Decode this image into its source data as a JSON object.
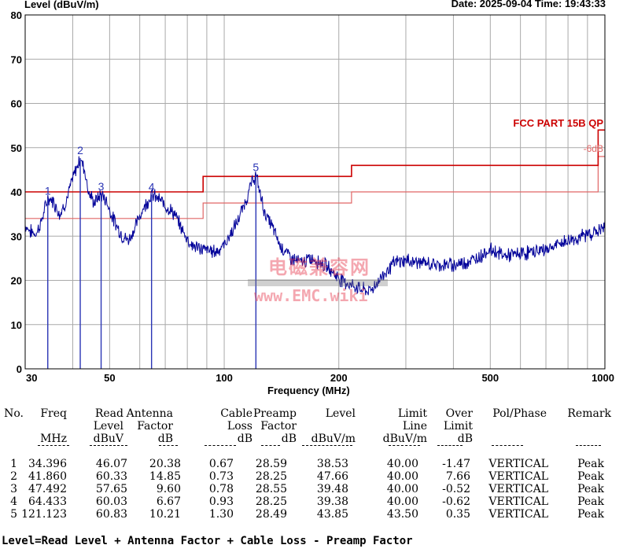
{
  "header": {
    "ylabel": "Level (dBuV/m)",
    "datetime": "Date: 2025-09-04  Time: 19:43:33",
    "xlabel": "Frequency (MHz)"
  },
  "watermark": {
    "line1": "电磁兼容网",
    "line2": "www.EMC.wiki"
  },
  "chart_data": {
    "type": "line",
    "xscale": "log",
    "xlim": [
      30,
      1000
    ],
    "ylim": [
      0,
      80
    ],
    "grid": true,
    "y_ticks": [
      0,
      10,
      20,
      30,
      40,
      50,
      60,
      70,
      80
    ],
    "x_tick_labels": [
      {
        "value": 30,
        "label": "30"
      },
      {
        "value": 50,
        "label": "50"
      },
      {
        "value": 100,
        "label": "100"
      },
      {
        "value": 200,
        "label": "200"
      },
      {
        "value": 500,
        "label": "500"
      },
      {
        "value": 1000,
        "label": "1000"
      }
    ],
    "x_minor_grid": [
      30,
      40,
      50,
      60,
      70,
      80,
      90,
      100,
      200,
      300,
      400,
      500,
      600,
      700,
      800,
      900,
      1000
    ],
    "limit_name": "FCC PART 15B QP",
    "margin_label": "-6dB",
    "limit_line": [
      [
        30,
        40.0
      ],
      [
        88,
        40.0
      ],
      [
        88,
        43.5
      ],
      [
        216,
        43.5
      ],
      [
        216,
        46.0
      ],
      [
        960,
        46.0
      ],
      [
        960,
        54.0
      ],
      [
        1000,
        54.0
      ]
    ],
    "margin_line": [
      [
        30,
        34.0
      ],
      [
        88,
        34.0
      ],
      [
        88,
        37.5
      ],
      [
        216,
        37.5
      ],
      [
        216,
        40.0
      ],
      [
        960,
        40.0
      ],
      [
        960,
        48.0
      ],
      [
        1000,
        48.0
      ]
    ],
    "trace": [
      [
        30,
        32.5
      ],
      [
        31,
        31
      ],
      [
        32,
        30.5
      ],
      [
        33,
        33
      ],
      [
        34.4,
        38.5
      ],
      [
        35.5,
        38
      ],
      [
        37,
        35
      ],
      [
        38.5,
        38
      ],
      [
        40,
        43
      ],
      [
        41.86,
        47.66
      ],
      [
        43,
        45
      ],
      [
        44,
        40
      ],
      [
        45.5,
        37.5
      ],
      [
        47.49,
        39.48
      ],
      [
        49,
        38
      ],
      [
        51,
        34
      ],
      [
        54,
        30
      ],
      [
        56,
        29
      ],
      [
        58,
        31.5
      ],
      [
        61,
        36
      ],
      [
        64.43,
        39.38
      ],
      [
        67,
        38.5
      ],
      [
        70,
        37
      ],
      [
        74,
        35
      ],
      [
        78,
        31
      ],
      [
        82,
        28
      ],
      [
        88,
        27
      ],
      [
        95,
        26.5
      ],
      [
        100,
        28
      ],
      [
        108,
        33
      ],
      [
        114,
        38
      ],
      [
        118,
        42
      ],
      [
        121.12,
        43.85
      ],
      [
        124,
        40
      ],
      [
        128,
        35
      ],
      [
        134,
        32
      ],
      [
        140,
        28
      ],
      [
        150,
        25
      ],
      [
        160,
        24
      ],
      [
        170,
        25
      ],
      [
        180,
        24
      ],
      [
        190,
        22.5
      ],
      [
        200,
        20.5
      ],
      [
        215,
        19
      ],
      [
        230,
        18
      ],
      [
        240,
        17.5
      ],
      [
        250,
        19
      ],
      [
        260,
        21
      ],
      [
        280,
        24
      ],
      [
        300,
        24.5
      ],
      [
        330,
        24
      ],
      [
        360,
        23.5
      ],
      [
        400,
        23.5
      ],
      [
        450,
        24.5
      ],
      [
        500,
        27
      ],
      [
        550,
        25.5
      ],
      [
        600,
        26
      ],
      [
        650,
        26.5
      ],
      [
        700,
        27
      ],
      [
        750,
        28
      ],
      [
        800,
        29
      ],
      [
        850,
        29.5
      ],
      [
        900,
        30.5
      ],
      [
        950,
        31
      ],
      [
        1000,
        32
      ]
    ],
    "markers": [
      {
        "label": "1",
        "freq": 34.396,
        "level": 38.53
      },
      {
        "label": "2",
        "freq": 41.86,
        "level": 47.66
      },
      {
        "label": "3",
        "freq": 47.492,
        "level": 39.48
      },
      {
        "label": "4",
        "freq": 64.433,
        "level": 39.38
      },
      {
        "label": "5",
        "freq": 121.123,
        "level": 43.85
      }
    ],
    "colors": {
      "trace": "#000099",
      "limit": "#cc0000",
      "margin": "#e06666",
      "grid": "#a9a9a9",
      "marker": "#2a35b5"
    }
  },
  "table": {
    "headers": [
      [
        "No."
      ],
      [
        "Freq",
        "",
        "MHz"
      ],
      [
        "Read",
        "Level",
        "dBuV"
      ],
      [
        "Antenna",
        "Factor",
        "dB"
      ],
      [
        "Cable",
        "Loss",
        "dB"
      ],
      [
        "Preamp",
        "Factor",
        "dB"
      ],
      [
        "Level",
        "",
        "dBuV/m"
      ],
      [
        "Limit",
        "Line",
        "dBuV/m"
      ],
      [
        "Over",
        "Limit",
        "dB"
      ],
      [
        "Pol/Phase"
      ],
      [
        "Remark"
      ]
    ],
    "rows": [
      [
        "1",
        "34.396",
        "46.07",
        "20.38",
        "0.67",
        "28.59",
        "38.53",
        "40.00",
        "-1.47",
        "VERTICAL",
        "Peak"
      ],
      [
        "2",
        "41.860",
        "60.33",
        "14.85",
        "0.73",
        "28.25",
        "47.66",
        "40.00",
        "7.66",
        "VERTICAL",
        "Peak"
      ],
      [
        "3",
        "47.492",
        "57.65",
        "9.60",
        "0.78",
        "28.55",
        "39.48",
        "40.00",
        "-0.52",
        "VERTICAL",
        "Peak"
      ],
      [
        "4",
        "64.433",
        "60.03",
        "6.67",
        "0.93",
        "28.25",
        "39.38",
        "40.00",
        "-0.62",
        "VERTICAL",
        "Peak"
      ],
      [
        "5",
        "121.123",
        "60.83",
        "10.21",
        "1.30",
        "28.49",
        "43.85",
        "43.50",
        "0.35",
        "VERTICAL",
        "Peak"
      ]
    ]
  },
  "formula": "Level=Read Level + Antenna Factor + Cable Loss - Preamp Factor"
}
